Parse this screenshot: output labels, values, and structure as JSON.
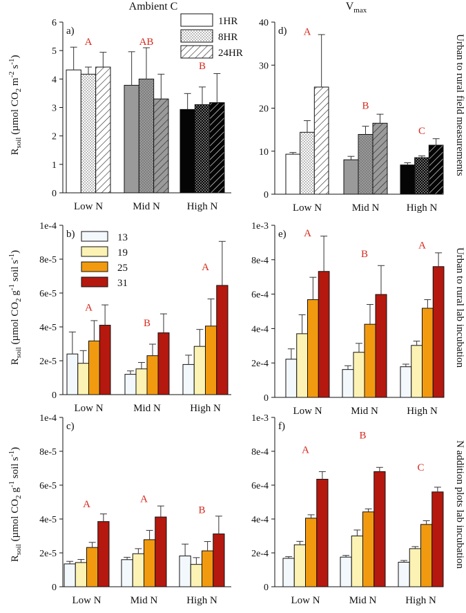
{
  "figure": {
    "column_titles": [
      "Ambient C",
      "V"
    ],
    "column_title_sub": "max",
    "row_titles": [
      "Urban to rural field measurements",
      "Urban to rural lab incubation",
      "N addition plots lab incubation"
    ],
    "ylabel_top": {
      "main": "R",
      "sub": "soil",
      "rest": " (µmol CO",
      "co2sub": "2",
      "unit": " m",
      "exp1": "-2",
      "s": " s",
      "exp2": "-1",
      "close": ")"
    },
    "ylabel_lab": {
      "main": "R",
      "sub": "soil",
      "rest": " (µmol CO",
      "co2sub": "2",
      "unit": " g",
      "exp1": "-1",
      "s": " soil s",
      "exp2": "-1",
      "close": ")"
    },
    "significance_color": "#d42a1e"
  },
  "legends": {
    "duration": [
      {
        "label": "1HR",
        "pattern": "open"
      },
      {
        "label": "8HR",
        "pattern": "dots"
      },
      {
        "label": "24HR",
        "pattern": "hatch"
      }
    ],
    "temperature": [
      {
        "label": "13",
        "color": "#f3f8fd"
      },
      {
        "label": "19",
        "color": "#fbf2b4"
      },
      {
        "label": "25",
        "color": "#f29a0f"
      },
      {
        "label": "31",
        "color": "#b5180e"
      }
    ]
  },
  "chart_data": [
    {
      "id": "a",
      "panel_label": "a)",
      "type": "bar",
      "style": "field",
      "left": true,
      "categories": [
        "Low N",
        "Mid N",
        "High N"
      ],
      "category_colors": [
        "#ffffff",
        "#9a9a9a",
        "#050505"
      ],
      "series_names": [
        "1HR",
        "8HR",
        "24HR"
      ],
      "values": [
        [
          4.32,
          4.17,
          4.42
        ],
        [
          3.78,
          4.0,
          3.3
        ],
        [
          2.93,
          3.1,
          3.17
        ]
      ],
      "errors": [
        [
          0.8,
          0.25,
          0.52
        ],
        [
          1.18,
          1.1,
          0.87
        ],
        [
          0.56,
          0.62,
          1.02
        ]
      ],
      "ylim": [
        0,
        6
      ],
      "yticks": [
        "0",
        "1",
        "2",
        "3",
        "4",
        "5",
        "6"
      ],
      "letters": [
        "A",
        "AB",
        "B"
      ],
      "letter_y": [
        5.2,
        5.2,
        4.35
      ]
    },
    {
      "id": "d",
      "panel_label": "d)",
      "type": "bar",
      "style": "field",
      "left": false,
      "categories": [
        "Low N",
        "Mid N",
        "High N"
      ],
      "category_colors": [
        "#ffffff",
        "#9a9a9a",
        "#050505"
      ],
      "series_names": [
        "1HR",
        "8HR",
        "24HR"
      ],
      "values": [
        [
          9.3,
          14.4,
          24.9
        ],
        [
          8.0,
          13.9,
          16.5
        ],
        [
          6.8,
          8.5,
          11.4
        ]
      ],
      "errors": [
        [
          0.4,
          2.7,
          12.2
        ],
        [
          0.8,
          1.9,
          2.1
        ],
        [
          0.5,
          0.4,
          1.5
        ]
      ],
      "ylim": [
        0,
        40
      ],
      "yticks": [
        "0",
        "10",
        "20",
        "30",
        "40"
      ],
      "letters": [
        "A",
        "B",
        "C"
      ],
      "letter_y": [
        37.0,
        19.8,
        14.0
      ]
    },
    {
      "id": "b",
      "panel_label": "b)",
      "type": "bar",
      "style": "temp",
      "left": true,
      "categories": [
        "Low N",
        "Mid N",
        "High N"
      ],
      "series_names": [
        "13",
        "19",
        "25",
        "31"
      ],
      "values": [
        [
          2.4e-05,
          1.85e-05,
          3.17e-05,
          4.1e-05
        ],
        [
          1.2e-05,
          1.52e-05,
          2.3e-05,
          3.65e-05
        ],
        [
          1.78e-05,
          2.85e-05,
          4.05e-05,
          6.45e-05
        ]
      ],
      "errors": [
        [
          1.3e-05,
          7.5e-06,
          1.2e-05,
          1.2e-05
        ],
        [
          2e-06,
          3.8e-06,
          6.8e-06,
          1.12e-05
        ],
        [
          5.5e-06,
          1e-05,
          1.6e-05,
          2.6e-05
        ]
      ],
      "ylim": [
        0,
        0.0001
      ],
      "yticks": [
        "0",
        "2e-5",
        "4e-5",
        "6e-5",
        "8e-5",
        "1e-4"
      ],
      "letters": [
        "A",
        "B",
        "A"
      ],
      "letter_y": [
        4.95e-05,
        4.05e-05,
        7.35e-05
      ]
    },
    {
      "id": "e",
      "panel_label": "e)",
      "type": "bar",
      "style": "temp",
      "left": false,
      "categories": [
        "Low N",
        "Mid N",
        "High N"
      ],
      "series_names": [
        "13",
        "19",
        "25",
        "31"
      ],
      "values": [
        [
          0.000222,
          0.00037,
          0.000568,
          0.000732
        ],
        [
          0.000162,
          0.000262,
          0.000425,
          0.000598
        ],
        [
          0.000178,
          0.000302,
          0.000518,
          0.00076
        ]
      ],
      "errors": [
        [
          6e-05,
          0.00011,
          0.00013,
          0.000205
        ],
        [
          2.2e-05,
          5.2e-05,
          0.000115,
          0.000168
        ],
        [
          1.5e-05,
          2.5e-05,
          5e-05,
          8e-05
        ]
      ],
      "ylim": [
        0,
        0.001
      ],
      "yticks": [
        "0",
        "2e-4",
        "4e-4",
        "6e-4",
        "8e-4",
        "1e-3"
      ],
      "letters": [
        "A",
        "B",
        "A"
      ],
      "letter_y": [
        0.000935,
        0.000815,
        0.000865
      ]
    },
    {
      "id": "c",
      "panel_label": "c)",
      "type": "bar",
      "style": "temp",
      "left": true,
      "categories": [
        "Low N",
        "Mid N",
        "High N"
      ],
      "series_names": [
        "13",
        "19",
        "25",
        "31"
      ],
      "values": [
        [
          1.35e-05,
          1.43e-05,
          2.32e-05,
          3.85e-05
        ],
        [
          1.6e-05,
          1.95e-05,
          2.78e-05,
          4.12e-05
        ],
        [
          1.82e-05,
          1.32e-05,
          2.12e-05,
          3.12e-05
        ]
      ],
      "errors": [
        [
          1.5e-06,
          1.8e-06,
          3e-06,
          4.5e-06
        ],
        [
          1.4e-06,
          3e-06,
          5.5e-06,
          6.5e-06
        ],
        [
          7e-06,
          4e-06,
          5.5e-06,
          1.05e-05
        ]
      ],
      "ylim": [
        0,
        0.0001
      ],
      "yticks": [
        "0",
        "2e-5",
        "4e-5",
        "6e-5",
        "8e-5",
        "1e-4"
      ],
      "letters": [
        "A",
        "A",
        "B"
      ],
      "letter_y": [
        4.7e-05,
        5e-05,
        4.35e-05
      ]
    },
    {
      "id": "f",
      "panel_label": "f)",
      "type": "bar",
      "style": "temp",
      "left": false,
      "categories": [
        "Low N",
        "Mid N",
        "High N"
      ],
      "series_names": [
        "13",
        "19",
        "25",
        "31"
      ],
      "values": [
        [
          0.000168,
          0.000248,
          0.000405,
          0.000635
        ],
        [
          0.000175,
          0.0003,
          0.000442,
          0.00068
        ],
        [
          0.000145,
          0.000225,
          0.000368,
          0.00056
        ]
      ],
      "errors": [
        [
          1e-05,
          2e-05,
          2e-05,
          4.5e-05
        ],
        [
          1e-05,
          3.5e-05,
          1.8e-05,
          2.5e-05
        ],
        [
          1e-05,
          1.2e-05,
          2.2e-05,
          2.8e-05
        ]
      ],
      "ylim": [
        0,
        0.001
      ],
      "yticks": [
        "0",
        "2e-4",
        "4e-4",
        "6e-4",
        "8e-4",
        "1e-3"
      ],
      "letters": [
        "A",
        "B",
        "C"
      ],
      "letter_y": [
        0.00079,
        0.000875,
        0.000685
      ]
    }
  ]
}
